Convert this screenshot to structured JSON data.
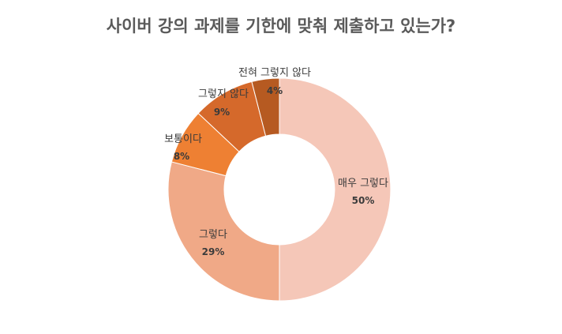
{
  "chart_data": {
    "type": "pie",
    "variant": "donut",
    "title": "사이버 강의 과제를 기한에 맞춰 제출하고 있는가?",
    "categories": [
      "매우 그렇다",
      "그렇다",
      "보통이다",
      "그렇지 않다",
      "전혀 그렇지 않다"
    ],
    "values": [
      50,
      29,
      8,
      9,
      4
    ],
    "value_labels": [
      "50%",
      "29%",
      "8%",
      "9%",
      "4%"
    ],
    "colors": [
      "#f5c7b8",
      "#f0a987",
      "#ee8033",
      "#d5692b",
      "#b65a21"
    ],
    "legend": "none"
  }
}
